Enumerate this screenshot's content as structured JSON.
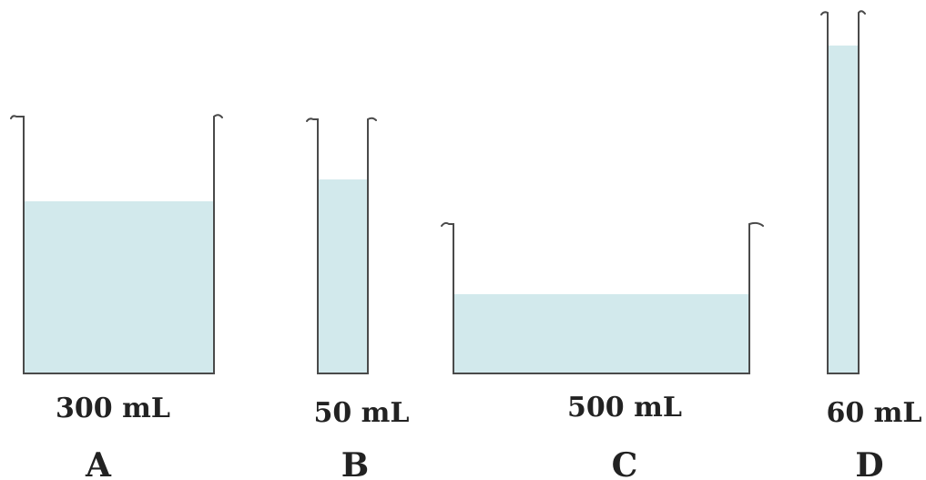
{
  "containers": [
    {
      "letter": "A",
      "volume": "300 mL"
    },
    {
      "letter": "B",
      "volume": "50 mL"
    },
    {
      "letter": "C",
      "volume": "500 mL"
    },
    {
      "letter": "D",
      "volume": "60 mL"
    }
  ],
  "colors": {
    "liquid": "#d2e9ec",
    "outline": "#4a4a4a",
    "text": "#222222"
  }
}
